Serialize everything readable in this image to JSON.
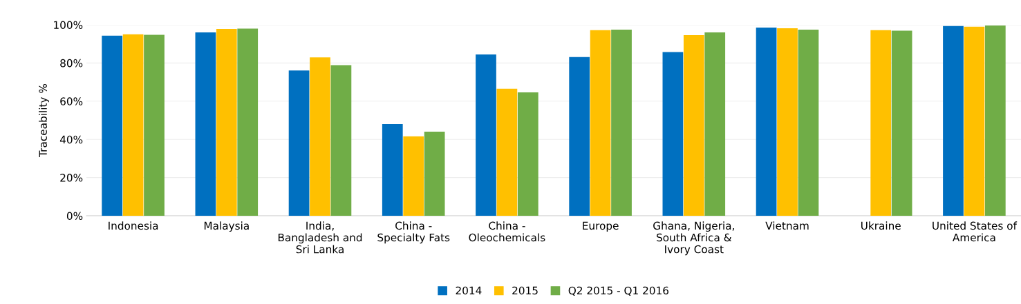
{
  "chart_data": {
    "type": "bar",
    "ylabel": "Traceability %",
    "categories": [
      "Indonesia",
      "Malaysia",
      "India,\nBangladesh and\nSri Lanka",
      "China -\nSpecialty Fats",
      "China -\nOleochemicals",
      "Europe",
      "Ghana, Nigeria,\nSouth Africa &\nIvory Coast",
      "Vietnam",
      "Ukraine",
      "United States of\nAmerica"
    ],
    "series": [
      {
        "name": "2014",
        "color": "#0070c0",
        "values": [
          94.3,
          96.0,
          76.1,
          48.0,
          84.5,
          83.1,
          85.7,
          98.6,
          null,
          99.4
        ]
      },
      {
        "name": "2015",
        "color": "#ffc000",
        "values": [
          95.0,
          97.8,
          82.9,
          41.6,
          66.5,
          97.2,
          94.6,
          98.2,
          97.2,
          99.0
        ]
      },
      {
        "name": "Q2 2015 - Q1 2016",
        "color": "#70ad47",
        "values": [
          94.8,
          98.0,
          78.9,
          44.0,
          64.6,
          97.5,
          96.0,
          97.5,
          96.9,
          99.6
        ]
      }
    ],
    "ylim": [
      0,
      100
    ],
    "yticks": [
      {
        "value": 0,
        "label": "0%"
      },
      {
        "value": 20,
        "label": "20%"
      },
      {
        "value": 40,
        "label": "40%"
      },
      {
        "value": 60,
        "label": "60%"
      },
      {
        "value": 80,
        "label": "80%"
      },
      {
        "value": 100,
        "label": "100%"
      }
    ],
    "grid": "y",
    "legend": "bottom"
  }
}
